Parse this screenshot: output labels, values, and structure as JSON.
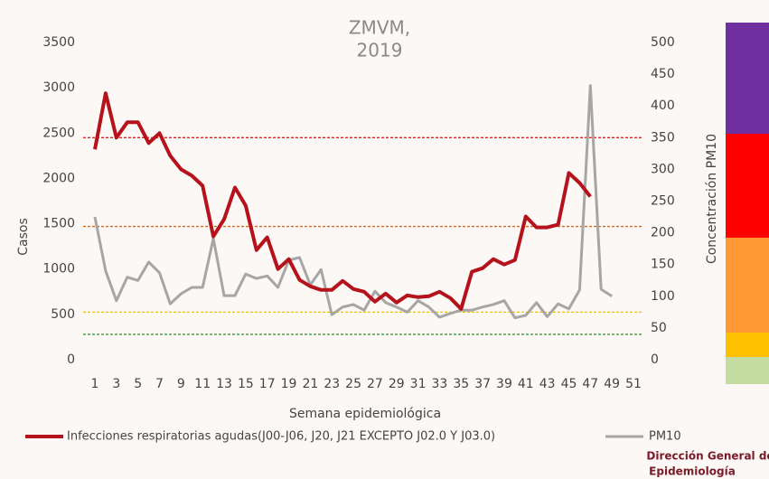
{
  "chart_data": {
    "type": "line",
    "title_lines": [
      "ZMVM,",
      "2019"
    ],
    "x_label": "Semana epidemiológica",
    "y_label": "Casos",
    "y2_label": "Concentración PM10",
    "categories": [
      1,
      null,
      3,
      null,
      5,
      null,
      7,
      null,
      9,
      null,
      11,
      null,
      13,
      null,
      15,
      null,
      17,
      null,
      19,
      null,
      21,
      null,
      23,
      null,
      25,
      null,
      27,
      null,
      29,
      null,
      31,
      null,
      33,
      null,
      35,
      null,
      37,
      null,
      39,
      null,
      41,
      null,
      43,
      null,
      45,
      null,
      47,
      null,
      49,
      null,
      51
    ],
    "series": [
      {
        "name": "Infecciones respiratorias agudas(J00-J06, J20, J21 EXCEPTO J02.0 Y J03.0)",
        "color": "#b5121b",
        "axis": "y",
        "values": [
          2320,
          2940,
          2450,
          2620,
          2620,
          2390,
          2500,
          2250,
          2100,
          2030,
          1920,
          1360,
          1550,
          1900,
          1700,
          1210,
          1350,
          1000,
          1110,
          880,
          810,
          770,
          770,
          870,
          780,
          750,
          640,
          730,
          630,
          710,
          690,
          700,
          750,
          680,
          560,
          970,
          1010,
          1110,
          1050,
          1100,
          1580,
          1460,
          1460,
          1490,
          2060,
          1950,
          1800,
          null,
          null,
          null,
          null
        ]
      },
      {
        "name": "PM10",
        "color": "#a6a6a6",
        "axis": "y2",
        "values": [
          225,
          140,
          93,
          130,
          125,
          154,
          137,
          88,
          104,
          114,
          114,
          191,
          101,
          101,
          135,
          128,
          132,
          114,
          157,
          161,
          118,
          142,
          71,
          83,
          87,
          78,
          108,
          90,
          83,
          75,
          93,
          83,
          67,
          73,
          78,
          78,
          83,
          87,
          93,
          66,
          70,
          90,
          68,
          88,
          80,
          110,
          432,
          111,
          100,
          null,
          null
        ]
      }
    ],
    "reference_lines": [
      {
        "value": 350,
        "color": "#e02020",
        "axis": "y2"
      },
      {
        "value": 210,
        "color": "#d2691e",
        "axis": "y2"
      },
      {
        "value": 75,
        "color": "#f0c000",
        "axis": "y2"
      },
      {
        "value": 40,
        "color": "#3a9a3a",
        "axis": "y2"
      }
    ],
    "ylim": [
      0,
      3500
    ],
    "yticks": [
      0,
      500,
      1000,
      1500,
      2000,
      2500,
      3000,
      3500
    ],
    "y2lim": [
      0,
      500
    ],
    "y2ticks": [
      0,
      50,
      100,
      150,
      200,
      250,
      300,
      350,
      400,
      450,
      500
    ]
  },
  "logo": {
    "line1": "Dirección General de",
    "line2": "Epidemiología"
  }
}
